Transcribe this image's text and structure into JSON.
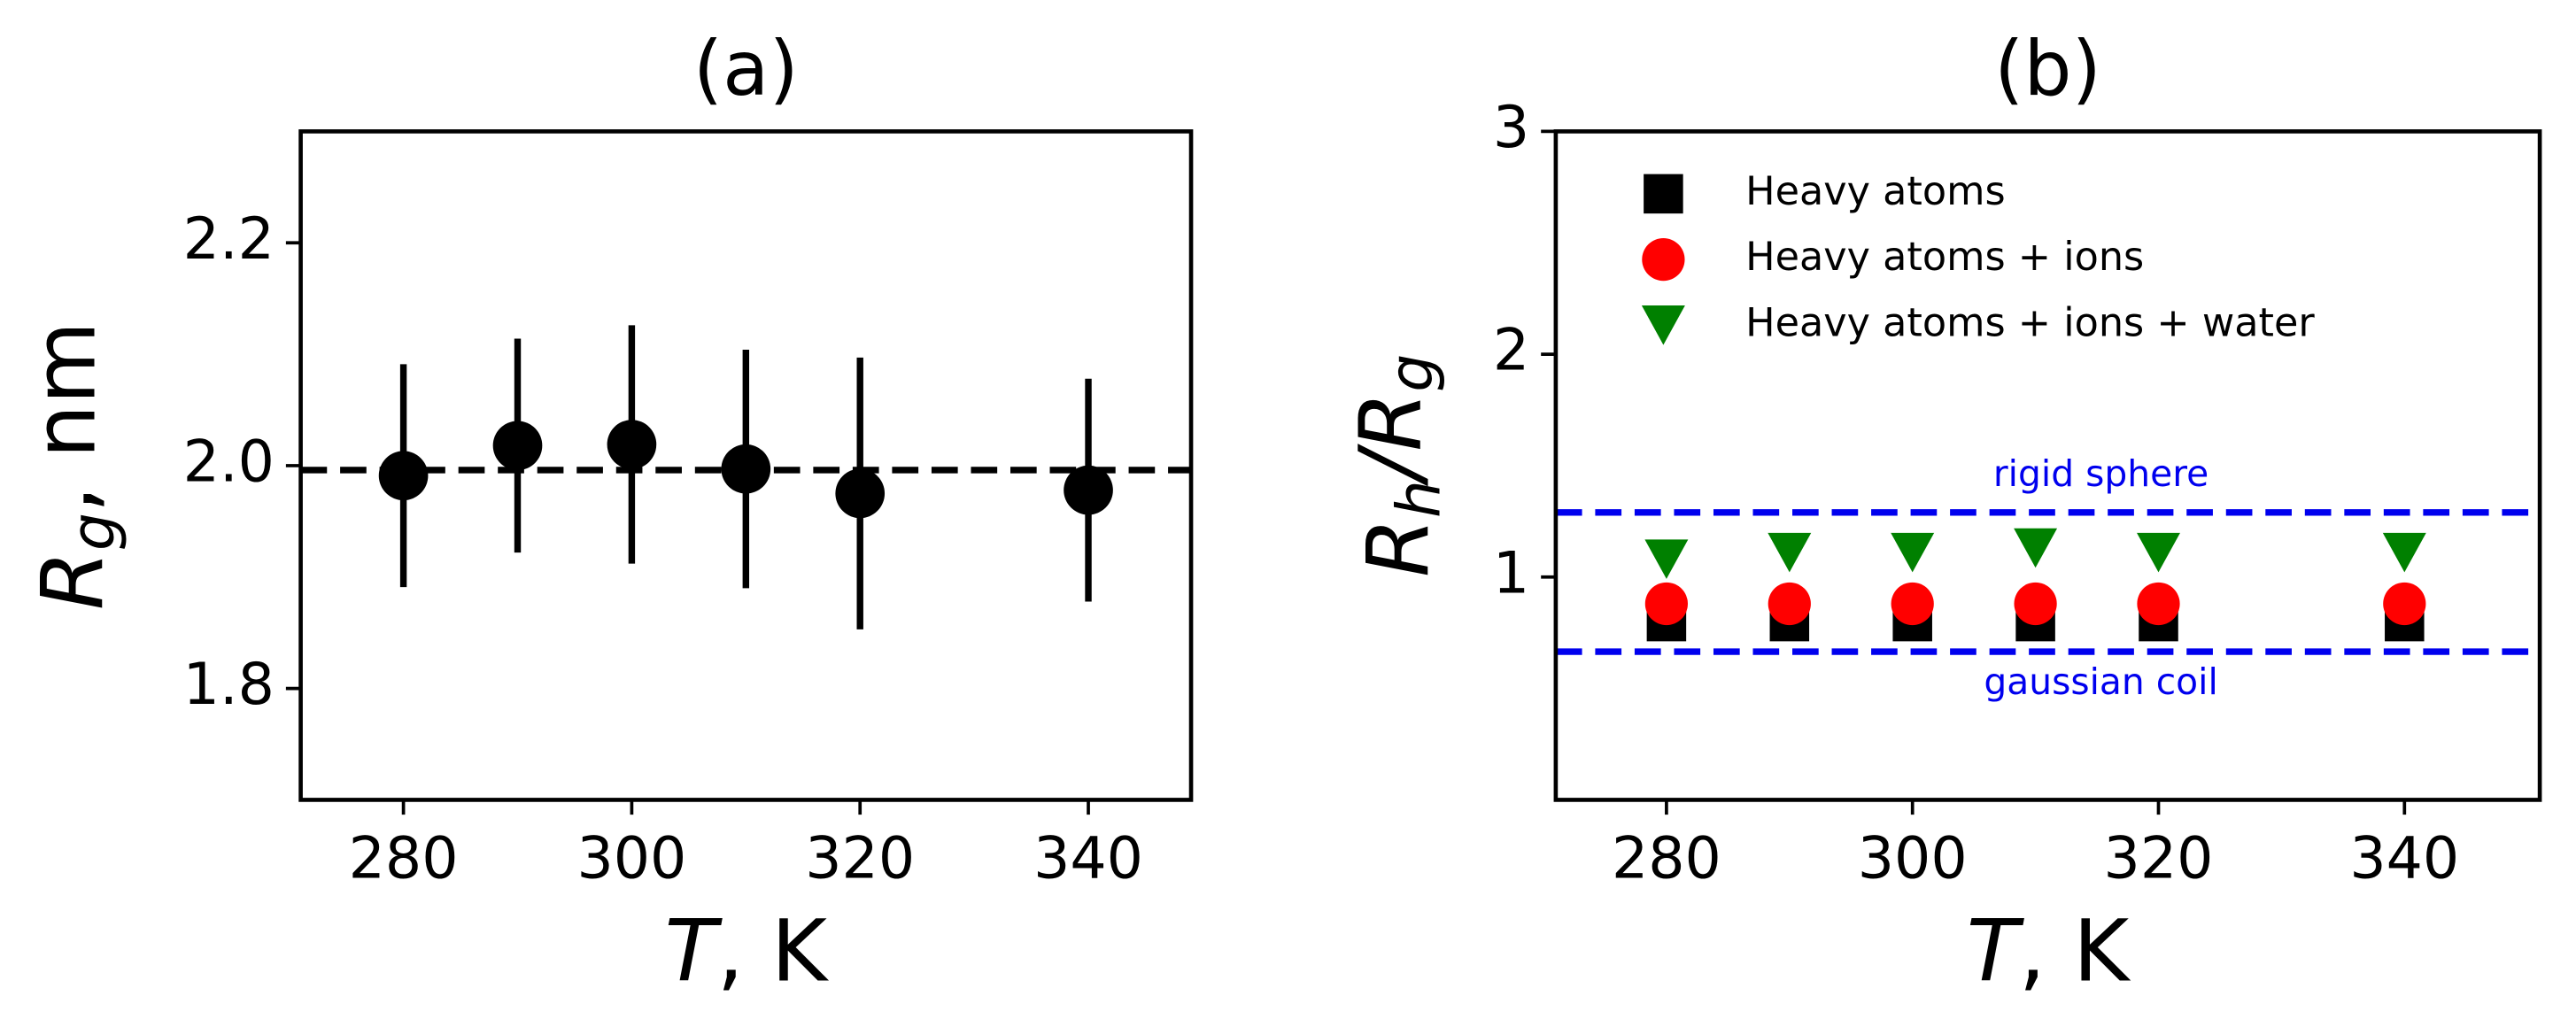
{
  "chart_data": [
    {
      "type": "scatter",
      "title": "(a)",
      "xlabel": [
        {
          "text": "T",
          "italic": true
        },
        {
          "text": ", K"
        }
      ],
      "ylabel": [
        {
          "text": "R",
          "italic": true
        },
        {
          "text": "g",
          "italic": true,
          "sub": true
        },
        {
          "text": ", nm"
        }
      ],
      "xlim": [
        271,
        349
      ],
      "ylim": [
        1.7,
        2.3
      ],
      "xticks": [
        280,
        300,
        320,
        340
      ],
      "yticks": [
        1.8,
        {
          "value": 2.0,
          "label": "2.0"
        },
        2.2
      ],
      "hlines": [
        {
          "y": 1.996,
          "color": "#000000"
        }
      ],
      "series": [
        {
          "marker": "circle",
          "color": "#000000",
          "x": [
            280,
            290,
            300,
            310,
            320,
            340
          ],
          "values": [
            1.991,
            2.018,
            2.019,
            1.997,
            1.975,
            1.978
          ],
          "errors": [
            0.1,
            0.096,
            0.107,
            0.107,
            0.122,
            0.1
          ]
        }
      ]
    },
    {
      "type": "scatter",
      "title": "(b)",
      "xlabel": [
        {
          "text": "T",
          "italic": true
        },
        {
          "text": ", K"
        }
      ],
      "ylabel": [
        {
          "text": "R",
          "italic": true
        },
        {
          "text": "h",
          "italic": true,
          "sub": true
        },
        {
          "text": "/",
          "italic": true
        },
        {
          "text": "R",
          "italic": true
        },
        {
          "text": "g",
          "italic": true,
          "sub": true
        }
      ],
      "xlim": [
        271,
        351
      ],
      "ylim": [
        0,
        3
      ],
      "xticks": [
        280,
        300,
        320,
        340
      ],
      "yticks": [
        1,
        2,
        3
      ],
      "legend": "upper center",
      "hlines": [
        {
          "y": 1.29,
          "color": "#0000ee",
          "label": "rigid sphere",
          "label_position": "above"
        },
        {
          "y": 0.665,
          "color": "#0000ee",
          "label": "gaussian coil",
          "label_position": "below"
        }
      ],
      "series": [
        {
          "name": "Heavy atoms",
          "marker": "square",
          "color": "#000000",
          "x": [
            280,
            290,
            300,
            310,
            320,
            340
          ],
          "values": [
            0.8,
            0.8,
            0.8,
            0.8,
            0.8,
            0.8
          ]
        },
        {
          "name": "Heavy atoms + ions",
          "marker": "circle",
          "color": "#ff0000",
          "x": [
            280,
            290,
            300,
            310,
            320,
            340
          ],
          "values": [
            0.88,
            0.88,
            0.88,
            0.88,
            0.88,
            0.88
          ]
        },
        {
          "name": "Heavy atoms + ions + water",
          "marker": "triangle_down",
          "color": "#008000",
          "x": [
            280,
            290,
            300,
            310,
            320,
            340
          ],
          "values": [
            1.08,
            1.11,
            1.11,
            1.13,
            1.11,
            1.11
          ]
        }
      ]
    }
  ]
}
